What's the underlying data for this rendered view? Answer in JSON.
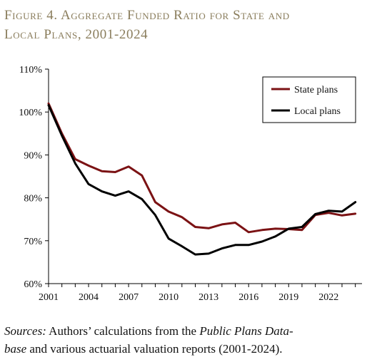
{
  "figure": {
    "title_line1": "Figure 4. Aggregate Funded Ratio for State and",
    "title_line2": "Local Plans, 2001-2024"
  },
  "sources": {
    "label": "Sources:",
    "text1": " Authors’ calculations from the ",
    "db1": "Public Plans Data-",
    "db2": "base",
    "text2": " and various actuarial valuation reports (2001-2024)."
  },
  "chart_data": {
    "type": "line",
    "title": "",
    "xlabel": "",
    "ylabel": "",
    "x": [
      2001,
      2002,
      2003,
      2004,
      2005,
      2006,
      2007,
      2008,
      2009,
      2010,
      2011,
      2012,
      2013,
      2014,
      2015,
      2016,
      2017,
      2018,
      2019,
      2020,
      2021,
      2022,
      2023,
      2024
    ],
    "xticks": [
      "2001",
      "2004",
      "2007",
      "2010",
      "2013",
      "2016",
      "2019",
      "2022"
    ],
    "yticks": [
      "60%",
      "70%",
      "80%",
      "90%",
      "100%",
      "110%"
    ],
    "ylim": [
      60,
      110
    ],
    "xlim": [
      2001,
      2024.5
    ],
    "grid": false,
    "legend_position": "top-right",
    "series": [
      {
        "name": "State plans",
        "color": "#7b1214",
        "values": [
          102.0,
          95.0,
          89.0,
          87.5,
          86.2,
          86.0,
          87.3,
          85.2,
          79.0,
          76.8,
          75.5,
          73.2,
          72.9,
          73.8,
          74.2,
          72.0,
          72.5,
          72.8,
          72.7,
          72.5,
          76.0,
          76.5,
          75.9,
          76.3
        ]
      },
      {
        "name": "Local plans",
        "color": "#000000",
        "values": [
          101.6,
          94.5,
          88.0,
          83.2,
          81.5,
          80.5,
          81.5,
          79.7,
          76.0,
          70.5,
          68.7,
          66.8,
          67.0,
          68.2,
          69.0,
          69.0,
          69.8,
          71.0,
          72.8,
          73.2,
          76.2,
          77.0,
          76.8,
          79.0
        ]
      }
    ]
  }
}
